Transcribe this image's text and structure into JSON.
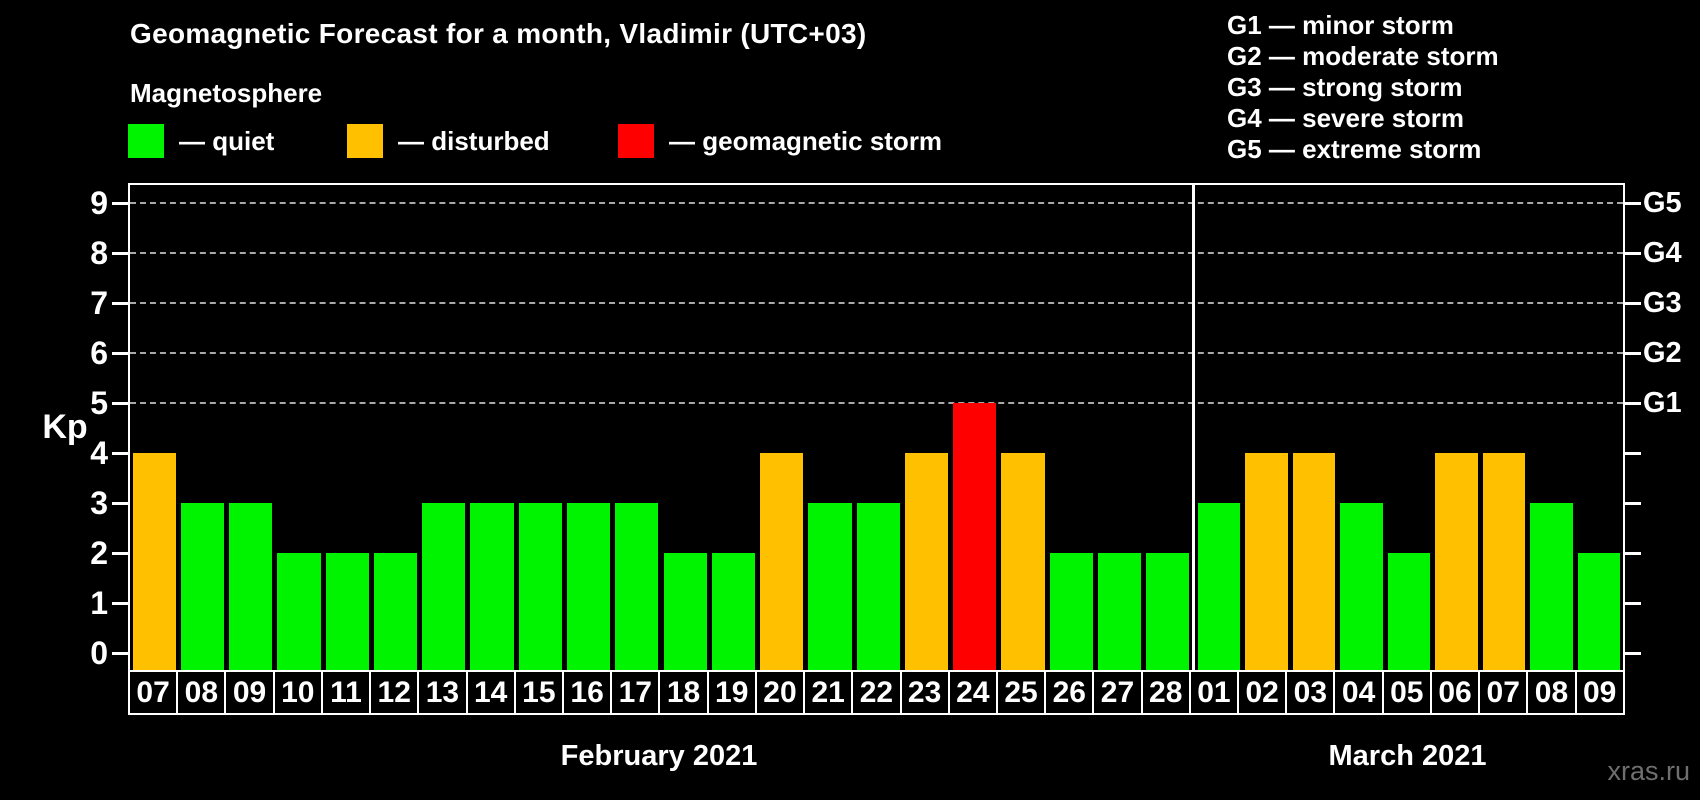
{
  "title": "Geomagnetic Forecast for a month, Vladimir (UTC+03)",
  "subtitle": "Magnetosphere",
  "legend": {
    "quiet": "— quiet",
    "disturbed": "— disturbed",
    "storm": "— geomagnetic storm"
  },
  "storm_scale": [
    "G1 — minor storm",
    "G2 — moderate storm",
    "G3 — strong storm",
    "G4 — severe storm",
    "G5 — extreme storm"
  ],
  "axis": {
    "y_label": "Kp",
    "y_ticks": [
      0,
      1,
      2,
      3,
      4,
      5,
      6,
      7,
      8,
      9
    ],
    "right_labels": [
      {
        "kp": 5,
        "label": "G1"
      },
      {
        "kp": 6,
        "label": "G2"
      },
      {
        "kp": 7,
        "label": "G3"
      },
      {
        "kp": 8,
        "label": "G4"
      },
      {
        "kp": 9,
        "label": "G5"
      }
    ],
    "grid_kp": [
      5,
      6,
      7,
      8,
      9
    ]
  },
  "months": [
    {
      "label": "February 2021",
      "days": 22
    },
    {
      "label": "March 2021",
      "days": 9
    }
  ],
  "colors": {
    "quiet": "#00f400",
    "disturbed": "#ffc000",
    "storm": "#ff0000",
    "background": "#000000",
    "grid": "#a9a9a9",
    "frame": "#ffffff",
    "watermark_text": "#6f6f6f"
  },
  "watermark": "xras.ru",
  "chart_data": {
    "type": "bar",
    "title": "Geomagnetic Forecast for a month, Vladimir (UTC+03)",
    "xlabel": "",
    "ylabel": "Kp",
    "ylim": [
      0,
      9.5
    ],
    "grid": "dashed horizontal at Kp 5-9 (G1-G5)",
    "legend_position": "top-left",
    "categories": [
      "07",
      "08",
      "09",
      "10",
      "11",
      "12",
      "13",
      "14",
      "15",
      "16",
      "17",
      "18",
      "19",
      "20",
      "21",
      "22",
      "23",
      "24",
      "25",
      "26",
      "27",
      "28",
      "01",
      "02",
      "03",
      "04",
      "05",
      "06",
      "07",
      "08",
      "09"
    ],
    "values": [
      4,
      3,
      3,
      2,
      2,
      2,
      3,
      3,
      3,
      3,
      3,
      2,
      2,
      4,
      3,
      3,
      4,
      5,
      4,
      2,
      2,
      2,
      3,
      4,
      4,
      3,
      2,
      4,
      4,
      3,
      2
    ],
    "bars": [
      {
        "month": "February 2021",
        "day": "07",
        "kp": 4,
        "status": "disturbed"
      },
      {
        "month": "February 2021",
        "day": "08",
        "kp": 3,
        "status": "quiet"
      },
      {
        "month": "February 2021",
        "day": "09",
        "kp": 3,
        "status": "quiet"
      },
      {
        "month": "February 2021",
        "day": "10",
        "kp": 2,
        "status": "quiet"
      },
      {
        "month": "February 2021",
        "day": "11",
        "kp": 2,
        "status": "quiet"
      },
      {
        "month": "February 2021",
        "day": "12",
        "kp": 2,
        "status": "quiet"
      },
      {
        "month": "February 2021",
        "day": "13",
        "kp": 3,
        "status": "quiet"
      },
      {
        "month": "February 2021",
        "day": "14",
        "kp": 3,
        "status": "quiet"
      },
      {
        "month": "February 2021",
        "day": "15",
        "kp": 3,
        "status": "quiet"
      },
      {
        "month": "February 2021",
        "day": "16",
        "kp": 3,
        "status": "quiet"
      },
      {
        "month": "February 2021",
        "day": "17",
        "kp": 3,
        "status": "quiet"
      },
      {
        "month": "February 2021",
        "day": "18",
        "kp": 2,
        "status": "quiet"
      },
      {
        "month": "February 2021",
        "day": "19",
        "kp": 2,
        "status": "quiet"
      },
      {
        "month": "February 2021",
        "day": "20",
        "kp": 4,
        "status": "disturbed"
      },
      {
        "month": "February 2021",
        "day": "21",
        "kp": 3,
        "status": "quiet"
      },
      {
        "month": "February 2021",
        "day": "22",
        "kp": 3,
        "status": "quiet"
      },
      {
        "month": "February 2021",
        "day": "23",
        "kp": 4,
        "status": "disturbed"
      },
      {
        "month": "February 2021",
        "day": "24",
        "kp": 5,
        "status": "storm"
      },
      {
        "month": "February 2021",
        "day": "25",
        "kp": 4,
        "status": "disturbed"
      },
      {
        "month": "February 2021",
        "day": "26",
        "kp": 2,
        "status": "quiet"
      },
      {
        "month": "February 2021",
        "day": "27",
        "kp": 2,
        "status": "quiet"
      },
      {
        "month": "February 2021",
        "day": "28",
        "kp": 2,
        "status": "quiet"
      },
      {
        "month": "March 2021",
        "day": "01",
        "kp": 3,
        "status": "quiet"
      },
      {
        "month": "March 2021",
        "day": "02",
        "kp": 4,
        "status": "disturbed"
      },
      {
        "month": "March 2021",
        "day": "03",
        "kp": 4,
        "status": "disturbed"
      },
      {
        "month": "March 2021",
        "day": "04",
        "kp": 3,
        "status": "quiet"
      },
      {
        "month": "March 2021",
        "day": "05",
        "kp": 2,
        "status": "quiet"
      },
      {
        "month": "March 2021",
        "day": "06",
        "kp": 4,
        "status": "disturbed"
      },
      {
        "month": "March 2021",
        "day": "07",
        "kp": 4,
        "status": "disturbed"
      },
      {
        "month": "March 2021",
        "day": "08",
        "kp": 3,
        "status": "quiet"
      },
      {
        "month": "March 2021",
        "day": "09",
        "kp": 2,
        "status": "quiet"
      }
    ]
  }
}
